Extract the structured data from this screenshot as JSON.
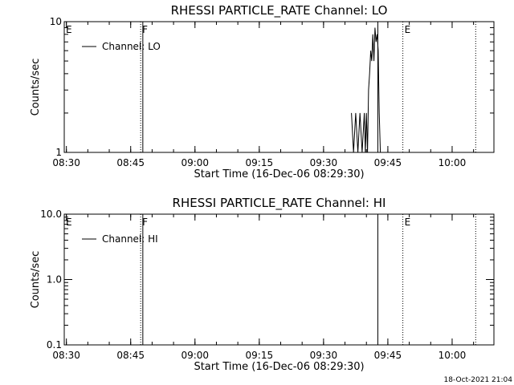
{
  "footer": {
    "date_stamp": "18-Oct-2021 21:04"
  },
  "chart_data": [
    {
      "type": "line",
      "title": "RHESSI PARTICLE_RATE Channel: LO",
      "xlabel": "Start Time (16-Dec-06 08:29:30)",
      "ylabel": "Counts/sec",
      "yscale": "log",
      "ylim": [
        1,
        10
      ],
      "yticks": [
        1,
        10
      ],
      "ytick_labels": [
        "1",
        "10"
      ],
      "xlim": [
        "08:29:30",
        "10:09:45"
      ],
      "xticks": [
        "08:30",
        "08:45",
        "09:00",
        "09:15",
        "09:30",
        "09:45",
        "10:00"
      ],
      "legend": {
        "position": "top-left",
        "entries": [
          "Channel: LO"
        ]
      },
      "markers": [
        {
          "label": "E",
          "time": "08:29:30",
          "style": "none"
        },
        {
          "label": "F",
          "time": "08:47:20",
          "style": "dotted"
        },
        {
          "label": "",
          "time": "08:47:50",
          "style": "solid"
        },
        {
          "label": "",
          "time": "09:42:40",
          "style": "solid"
        },
        {
          "label": "E",
          "time": "09:48:30",
          "style": "dotted"
        },
        {
          "label": "",
          "time": "10:05:30",
          "style": "dotted"
        }
      ],
      "series": [
        {
          "name": "Channel: LO",
          "x": [
            "09:36:30",
            "09:37:00",
            "09:37:30",
            "09:38:00",
            "09:38:30",
            "09:39:00",
            "09:39:30",
            "09:39:45",
            "09:40:00",
            "09:40:15",
            "09:40:30",
            "09:40:45",
            "09:41:00",
            "09:41:15",
            "09:41:30",
            "09:41:45",
            "09:42:00",
            "09:42:15",
            "09:42:30",
            "09:42:45",
            "09:43:00",
            "09:43:15"
          ],
          "values": [
            2,
            1,
            2,
            1,
            2,
            1,
            2,
            1,
            2,
            1,
            3,
            4,
            6,
            5,
            8,
            5,
            9,
            7,
            8,
            6,
            2,
            1
          ]
        }
      ]
    },
    {
      "type": "line",
      "title": "RHESSI PARTICLE_RATE Channel: HI",
      "xlabel": "Start Time (16-Dec-06 08:29:30)",
      "ylabel": "Counts/sec",
      "yscale": "log",
      "ylim": [
        0.1,
        10
      ],
      "yticks": [
        0.1,
        1,
        10
      ],
      "ytick_labels": [
        "0.1",
        "1.0",
        "10.0"
      ],
      "xlim": [
        "08:29:30",
        "10:09:45"
      ],
      "xticks": [
        "08:30",
        "08:45",
        "09:00",
        "09:15",
        "09:30",
        "09:45",
        "10:00"
      ],
      "legend": {
        "position": "top-left",
        "entries": [
          "Channel: HI"
        ]
      },
      "markers": [
        {
          "label": "E",
          "time": "08:29:30",
          "style": "none"
        },
        {
          "label": "F",
          "time": "08:47:20",
          "style": "dotted"
        },
        {
          "label": "",
          "time": "08:47:50",
          "style": "solid"
        },
        {
          "label": "",
          "time": "09:42:40",
          "style": "solid"
        },
        {
          "label": "E",
          "time": "09:48:30",
          "style": "dotted"
        },
        {
          "label": "",
          "time": "10:05:30",
          "style": "dotted"
        }
      ],
      "series": [
        {
          "name": "Channel: HI",
          "x": [],
          "values": []
        }
      ]
    }
  ]
}
